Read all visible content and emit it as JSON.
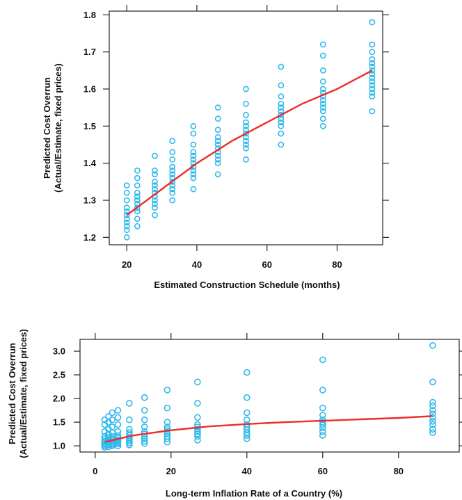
{
  "colors": {
    "points": "#2fb9ea",
    "fit": "#ee2a2a",
    "axis": "#222222"
  },
  "chart_data": [
    {
      "type": "scatter",
      "title": "",
      "xlabel": "Estimated Construction Schedule (months)",
      "ylabel": [
        "Predicted Cost Overrun",
        "(Actual/Estimate, fixed prices)"
      ],
      "xlim": [
        15,
        93
      ],
      "ylim": [
        1.18,
        1.81
      ],
      "xticks": [
        20,
        40,
        60,
        80
      ],
      "yticks": [
        1.2,
        1.3,
        1.4,
        1.5,
        1.6,
        1.7,
        1.8
      ],
      "ytick_labels": [
        "1.2",
        "1.3",
        "1.4",
        "1.5",
        "1.6",
        "1.7",
        "1.8"
      ],
      "grid": false,
      "points": [
        {
          "x": 20,
          "y": [
            1.2,
            1.22,
            1.23,
            1.24,
            1.25,
            1.26,
            1.27,
            1.28,
            1.3,
            1.32,
            1.34
          ]
        },
        {
          "x": 23,
          "y": [
            1.23,
            1.25,
            1.27,
            1.28,
            1.29,
            1.3,
            1.31,
            1.32,
            1.34,
            1.36,
            1.38
          ]
        },
        {
          "x": 28,
          "y": [
            1.26,
            1.28,
            1.29,
            1.3,
            1.31,
            1.32,
            1.33,
            1.34,
            1.35,
            1.37,
            1.38,
            1.42
          ]
        },
        {
          "x": 33,
          "y": [
            1.3,
            1.32,
            1.33,
            1.34,
            1.35,
            1.36,
            1.37,
            1.38,
            1.39,
            1.41,
            1.43,
            1.46
          ]
        },
        {
          "x": 39,
          "y": [
            1.33,
            1.36,
            1.37,
            1.38,
            1.39,
            1.4,
            1.41,
            1.42,
            1.43,
            1.45,
            1.48,
            1.5
          ]
        },
        {
          "x": 46,
          "y": [
            1.37,
            1.4,
            1.41,
            1.42,
            1.43,
            1.44,
            1.45,
            1.46,
            1.47,
            1.49,
            1.52,
            1.55
          ]
        },
        {
          "x": 54,
          "y": [
            1.41,
            1.44,
            1.45,
            1.46,
            1.47,
            1.48,
            1.49,
            1.5,
            1.51,
            1.53,
            1.56,
            1.6
          ]
        },
        {
          "x": 64,
          "y": [
            1.45,
            1.48,
            1.5,
            1.51,
            1.52,
            1.53,
            1.54,
            1.55,
            1.56,
            1.58,
            1.61,
            1.66
          ]
        },
        {
          "x": 76,
          "y": [
            1.5,
            1.52,
            1.54,
            1.55,
            1.56,
            1.57,
            1.58,
            1.59,
            1.6,
            1.62,
            1.65,
            1.69,
            1.72
          ]
        },
        {
          "x": 90,
          "y": [
            1.54,
            1.58,
            1.59,
            1.6,
            1.61,
            1.62,
            1.63,
            1.64,
            1.65,
            1.66,
            1.67,
            1.68,
            1.7,
            1.72,
            1.78
          ]
        }
      ],
      "fit_line": {
        "x": [
          20,
          30,
          40,
          50,
          60,
          70,
          80,
          90
        ],
        "y": [
          1.26,
          1.33,
          1.4,
          1.46,
          1.51,
          1.56,
          1.6,
          1.65
        ]
      }
    },
    {
      "type": "scatter",
      "title": "",
      "xlabel": "Long-term Inflation Rate of a Country (%)",
      "ylabel": [
        "Predicted Cost Overrun",
        "(Actual/Estimate, fixed prices)"
      ],
      "xlim": [
        -4,
        96
      ],
      "ylim": [
        0.87,
        3.25
      ],
      "xticks": [
        0,
        20,
        40,
        60,
        80
      ],
      "yticks": [
        1.0,
        1.5,
        2.0,
        2.5,
        3.0
      ],
      "ytick_labels": [
        "1.0",
        "1.5",
        "2.0",
        "2.5",
        "3.0"
      ],
      "grid": false,
      "points": [
        {
          "x": 2.5,
          "y": [
            0.97,
            1.0,
            1.03,
            1.05,
            1.08,
            1.1,
            1.15,
            1.2,
            1.3,
            1.45,
            1.55
          ]
        },
        {
          "x": 3.5,
          "y": [
            0.98,
            1.02,
            1.05,
            1.08,
            1.1,
            1.13,
            1.18,
            1.25,
            1.35,
            1.5,
            1.62
          ]
        },
        {
          "x": 4.5,
          "y": [
            1.0,
            1.03,
            1.06,
            1.09,
            1.12,
            1.15,
            1.2,
            1.28,
            1.4,
            1.55,
            1.7
          ]
        },
        {
          "x": 6,
          "y": [
            1.0,
            1.04,
            1.07,
            1.1,
            1.13,
            1.17,
            1.22,
            1.3,
            1.45,
            1.6,
            1.75
          ]
        },
        {
          "x": 9,
          "y": [
            1.02,
            1.06,
            1.1,
            1.14,
            1.18,
            1.22,
            1.28,
            1.35,
            1.55,
            1.9
          ]
        },
        {
          "x": 13,
          "y": [
            1.05,
            1.1,
            1.15,
            1.2,
            1.25,
            1.3,
            1.4,
            1.55,
            1.75,
            2.02
          ]
        },
        {
          "x": 19,
          "y": [
            1.08,
            1.15,
            1.2,
            1.25,
            1.3,
            1.35,
            1.4,
            1.5,
            1.8,
            2.18
          ]
        },
        {
          "x": 27,
          "y": [
            1.12,
            1.2,
            1.25,
            1.3,
            1.35,
            1.4,
            1.45,
            1.6,
            1.9,
            2.35
          ]
        },
        {
          "x": 40,
          "y": [
            1.15,
            1.22,
            1.28,
            1.35,
            1.4,
            1.45,
            1.55,
            1.7,
            2.02,
            2.55
          ]
        },
        {
          "x": 60,
          "y": [
            1.22,
            1.3,
            1.38,
            1.45,
            1.5,
            1.55,
            1.65,
            1.8,
            2.18,
            2.82
          ]
        },
        {
          "x": 89,
          "y": [
            1.28,
            1.35,
            1.45,
            1.52,
            1.6,
            1.68,
            1.75,
            1.85,
            1.92,
            2.35,
            3.12
          ]
        }
      ],
      "fit_line": {
        "x": [
          2.5,
          10,
          20,
          30,
          40,
          50,
          60,
          70,
          80,
          89
        ],
        "y": [
          1.08,
          1.22,
          1.33,
          1.41,
          1.46,
          1.5,
          1.53,
          1.56,
          1.59,
          1.63
        ]
      }
    }
  ]
}
